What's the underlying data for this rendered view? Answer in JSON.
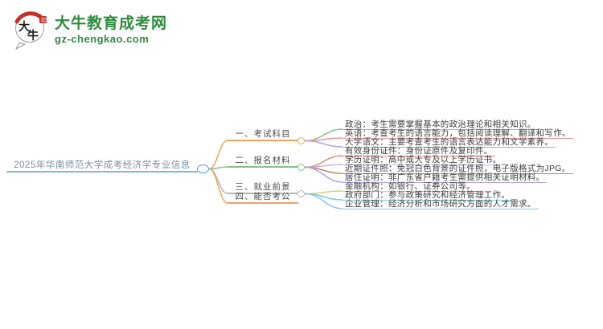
{
  "logo": {
    "title": "大牛教育成考网",
    "domain": "gz-chengkao.com",
    "icon_text": "大牛",
    "brand_color": "#2e8b3d",
    "seal_color": "#c53127"
  },
  "mindmap": {
    "root": {
      "label": "2025年华南师范大学成考经济学专业信息",
      "text_color": "#7b8fa3",
      "line_color": "#8ab6d6",
      "ellipse_color": "#5b9bd5"
    },
    "branches": [
      {
        "label": "一、考试科目",
        "color": "#f2a35c",
        "leaves": [
          {
            "label": "政治：考生需要掌握基本的政治理论和相关知识。",
            "color": "#82c785"
          },
          {
            "label": "英语：考查考生的语言能力，包括阅读理解、翻译和写作。",
            "color": "#ec9c9c"
          },
          {
            "label": "大学语文：主要考查考生的语言表达能力和文学素养。",
            "color": "#b6a1de"
          }
        ]
      },
      {
        "label": "二、报名材料",
        "color": "#82c785",
        "leaves": [
          {
            "label": "有效身份证件：身份证原件及复印件。",
            "color": "#e5897c"
          },
          {
            "label": "学历证明：高中或大专及以上学历证书。",
            "color": "#c4b3e6"
          },
          {
            "label": "近期证件照：免冠白色背景的证件照，电子版格式为JPG。",
            "color": "#bd8a62"
          },
          {
            "label": "居住证明：非广东省户籍考生需提供相关证明材料。",
            "color": "#b3a0dc"
          }
        ]
      },
      {
        "label": "三、就业前景",
        "color": "#b5b5b5",
        "leaves": [
          {
            "label": "金融机构：如银行、证券公司等。",
            "color": "#d9d064"
          },
          {
            "label": "政府部门：参与政策研究和经济管理工作。",
            "color": "#6ad1dc"
          },
          {
            "label": "企业管理：经济分析和市场研究方面的人才需求。",
            "color": "#8cc0e8"
          }
        ]
      },
      {
        "label": "四、能否考公",
        "color": "#f2a35c",
        "leaves": []
      }
    ]
  }
}
